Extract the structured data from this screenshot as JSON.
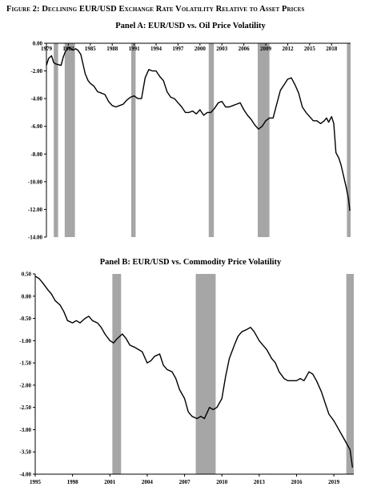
{
  "figure_title": "Figure 2: Declining EUR/USD Exchange Rate Volatility Relative to Asset Prices",
  "chart_data": [
    {
      "type": "line",
      "title": "Panel A: EUR/USD vs. Oil Price Volatility",
      "xlabel": "",
      "ylabel": "",
      "xlim": [
        1979,
        2020.6
      ],
      "ylim": [
        -14,
        0
      ],
      "x_ticks": [
        "1979",
        "1982",
        "1985",
        "1988",
        "1991",
        "1994",
        "1997",
        "2000",
        "2003",
        "2006",
        "2009",
        "2012",
        "2015",
        "2018"
      ],
      "x_tick_values": [
        1979,
        1982,
        1985,
        1988,
        1991,
        1994,
        1997,
        2000,
        2003,
        2006,
        2009,
        2012,
        2015,
        2018
      ],
      "y_ticks": [
        "0.00",
        "-2.00",
        "-4.00",
        "-6.00",
        "-8.00",
        "-10.00",
        "-12.00",
        "-14.00"
      ],
      "y_tick_values": [
        0,
        -2,
        -4,
        -6,
        -8,
        -10,
        -12,
        -14
      ],
      "grid": false,
      "shaded_periods": [
        [
          1980.0,
          1980.6
        ],
        [
          1981.5,
          1982.9
        ],
        [
          1990.6,
          1991.2
        ],
        [
          2001.2,
          2001.9
        ],
        [
          2007.9,
          2009.5
        ],
        [
          2020.1,
          2020.6
        ]
      ],
      "series": [
        {
          "x": [
            1979.0,
            1979.3,
            1979.7,
            1980.0,
            1980.3,
            1980.7,
            1981.0,
            1981.3,
            1981.6,
            1982.0,
            1982.3,
            1982.6,
            1983.0,
            1983.3,
            1983.7,
            1984.0,
            1984.3,
            1984.7,
            1985.0,
            1985.5,
            1986.0,
            1986.5,
            1987.0,
            1987.5,
            1988.0,
            1988.5,
            1989.0,
            1989.5,
            1990.0,
            1990.5,
            1991.0,
            1991.5,
            1992.0,
            1992.5,
            1993.0,
            1993.5,
            1994.0,
            1994.5,
            1995.0,
            1995.5,
            1996.0,
            1996.5,
            1997.0,
            1997.5,
            1998.0,
            1998.5,
            1999.0,
            1999.5,
            2000.0,
            2000.5,
            2001.0,
            2001.5,
            2002.0,
            2002.5,
            2003.0,
            2003.5,
            2004.0,
            2004.5,
            2005.0,
            2005.5,
            2006.0,
            2006.5,
            2007.0,
            2007.5,
            2008.0,
            2008.5,
            2009.0,
            2009.5,
            2010.0,
            2010.5,
            2011.0,
            2011.5,
            2012.0,
            2012.5,
            2013.0,
            2013.5,
            2014.0,
            2014.5,
            2015.0,
            2015.5,
            2016.0,
            2016.5,
            2017.0,
            2017.3,
            2017.6,
            2018.0,
            2018.3,
            2018.6,
            2019.0,
            2019.3,
            2019.6,
            2020.0,
            2020.3,
            2020.5
          ],
          "y": [
            -1.6,
            -1.1,
            -0.9,
            -1.4,
            -1.5,
            -1.55,
            -1.6,
            -1.0,
            -0.6,
            -0.3,
            -0.35,
            -0.5,
            -0.4,
            -0.5,
            -0.8,
            -1.5,
            -2.2,
            -2.7,
            -2.9,
            -3.1,
            -3.5,
            -3.6,
            -3.7,
            -4.2,
            -4.5,
            -4.6,
            -4.5,
            -4.4,
            -4.1,
            -3.9,
            -3.8,
            -4.0,
            -4.0,
            -2.5,
            -1.9,
            -2.0,
            -2.0,
            -2.4,
            -2.7,
            -3.5,
            -3.9,
            -4.0,
            -4.3,
            -4.6,
            -5.0,
            -5.0,
            -4.9,
            -5.1,
            -4.8,
            -5.2,
            -5.0,
            -5.0,
            -4.7,
            -4.3,
            -4.2,
            -4.6,
            -4.6,
            -4.5,
            -4.4,
            -4.3,
            -4.8,
            -5.2,
            -5.5,
            -5.9,
            -6.2,
            -6.0,
            -5.6,
            -5.4,
            -5.4,
            -4.4,
            -3.4,
            -3.0,
            -2.6,
            -2.5,
            -3.0,
            -3.6,
            -4.6,
            -5.0,
            -5.3,
            -5.6,
            -5.6,
            -5.8,
            -5.6,
            -5.4,
            -5.7,
            -5.3,
            -5.8,
            -7.9,
            -8.3,
            -8.8,
            -9.5,
            -10.4,
            -11.2,
            -12.1
          ]
        }
      ]
    },
    {
      "type": "line",
      "title": "Panel B: EUR/USD vs. Commodity Price Volatility",
      "xlabel": "",
      "ylabel": "",
      "xlim": [
        1995,
        2020.6
      ],
      "ylim": [
        -4.0,
        0.5
      ],
      "x_ticks": [
        "1995",
        "1998",
        "2001",
        "2004",
        "2007",
        "2010",
        "2013",
        "2016",
        "2019"
      ],
      "x_tick_values": [
        1995,
        1998,
        2001,
        2004,
        2007,
        2010,
        2013,
        2016,
        2019
      ],
      "y_ticks": [
        "0.50",
        "0.00",
        "-0.50",
        "-1.00",
        "-1.50",
        "-2.00",
        "-2.50",
        "-3.00",
        "-3.50",
        "-4.00"
      ],
      "y_tick_values": [
        0.5,
        0,
        -0.5,
        -1.0,
        -1.5,
        -2.0,
        -2.5,
        -3.0,
        -3.5,
        -4.0
      ],
      "grid": false,
      "shaded_periods": [
        [
          2001.2,
          2001.9
        ],
        [
          2007.9,
          2009.5
        ],
        [
          2020.0,
          2020.6
        ]
      ],
      "series": [
        {
          "x": [
            1995.0,
            1995.3,
            1995.6,
            1996.0,
            1996.3,
            1996.6,
            1997.0,
            1997.3,
            1997.6,
            1998.0,
            1998.3,
            1998.6,
            1999.0,
            1999.3,
            1999.6,
            2000.0,
            2000.3,
            2000.6,
            2001.0,
            2001.3,
            2001.6,
            2002.0,
            2002.3,
            2002.6,
            2003.0,
            2003.3,
            2003.6,
            2004.0,
            2004.3,
            2004.6,
            2005.0,
            2005.3,
            2005.6,
            2006.0,
            2006.3,
            2006.6,
            2007.0,
            2007.3,
            2007.6,
            2008.0,
            2008.3,
            2008.6,
            2009.0,
            2009.3,
            2009.6,
            2010.0,
            2010.3,
            2010.6,
            2011.0,
            2011.3,
            2011.6,
            2012.0,
            2012.3,
            2012.6,
            2013.0,
            2013.3,
            2013.6,
            2014.0,
            2014.3,
            2014.6,
            2015.0,
            2015.3,
            2015.6,
            2016.0,
            2016.3,
            2016.6,
            2017.0,
            2017.3,
            2017.6,
            2018.0,
            2018.3,
            2018.6,
            2019.0,
            2019.3,
            2019.6,
            2020.0,
            2020.3,
            2020.5
          ],
          "y": [
            0.45,
            0.4,
            0.3,
            0.15,
            0.05,
            -0.1,
            -0.2,
            -0.35,
            -0.55,
            -0.6,
            -0.55,
            -0.6,
            -0.5,
            -0.45,
            -0.55,
            -0.6,
            -0.7,
            -0.85,
            -1.0,
            -1.05,
            -0.95,
            -0.85,
            -0.95,
            -1.1,
            -1.15,
            -1.2,
            -1.25,
            -1.5,
            -1.45,
            -1.35,
            -1.3,
            -1.55,
            -1.65,
            -1.7,
            -1.85,
            -2.1,
            -2.3,
            -2.6,
            -2.7,
            -2.75,
            -2.7,
            -2.75,
            -2.5,
            -2.55,
            -2.5,
            -2.3,
            -1.8,
            -1.4,
            -1.1,
            -0.9,
            -0.8,
            -0.75,
            -0.7,
            -0.8,
            -1.0,
            -1.1,
            -1.2,
            -1.4,
            -1.5,
            -1.7,
            -1.85,
            -1.9,
            -1.9,
            -1.9,
            -1.85,
            -1.9,
            -1.7,
            -1.75,
            -1.9,
            -2.15,
            -2.4,
            -2.65,
            -2.8,
            -2.95,
            -3.1,
            -3.3,
            -3.45,
            -3.85
          ]
        }
      ]
    }
  ]
}
